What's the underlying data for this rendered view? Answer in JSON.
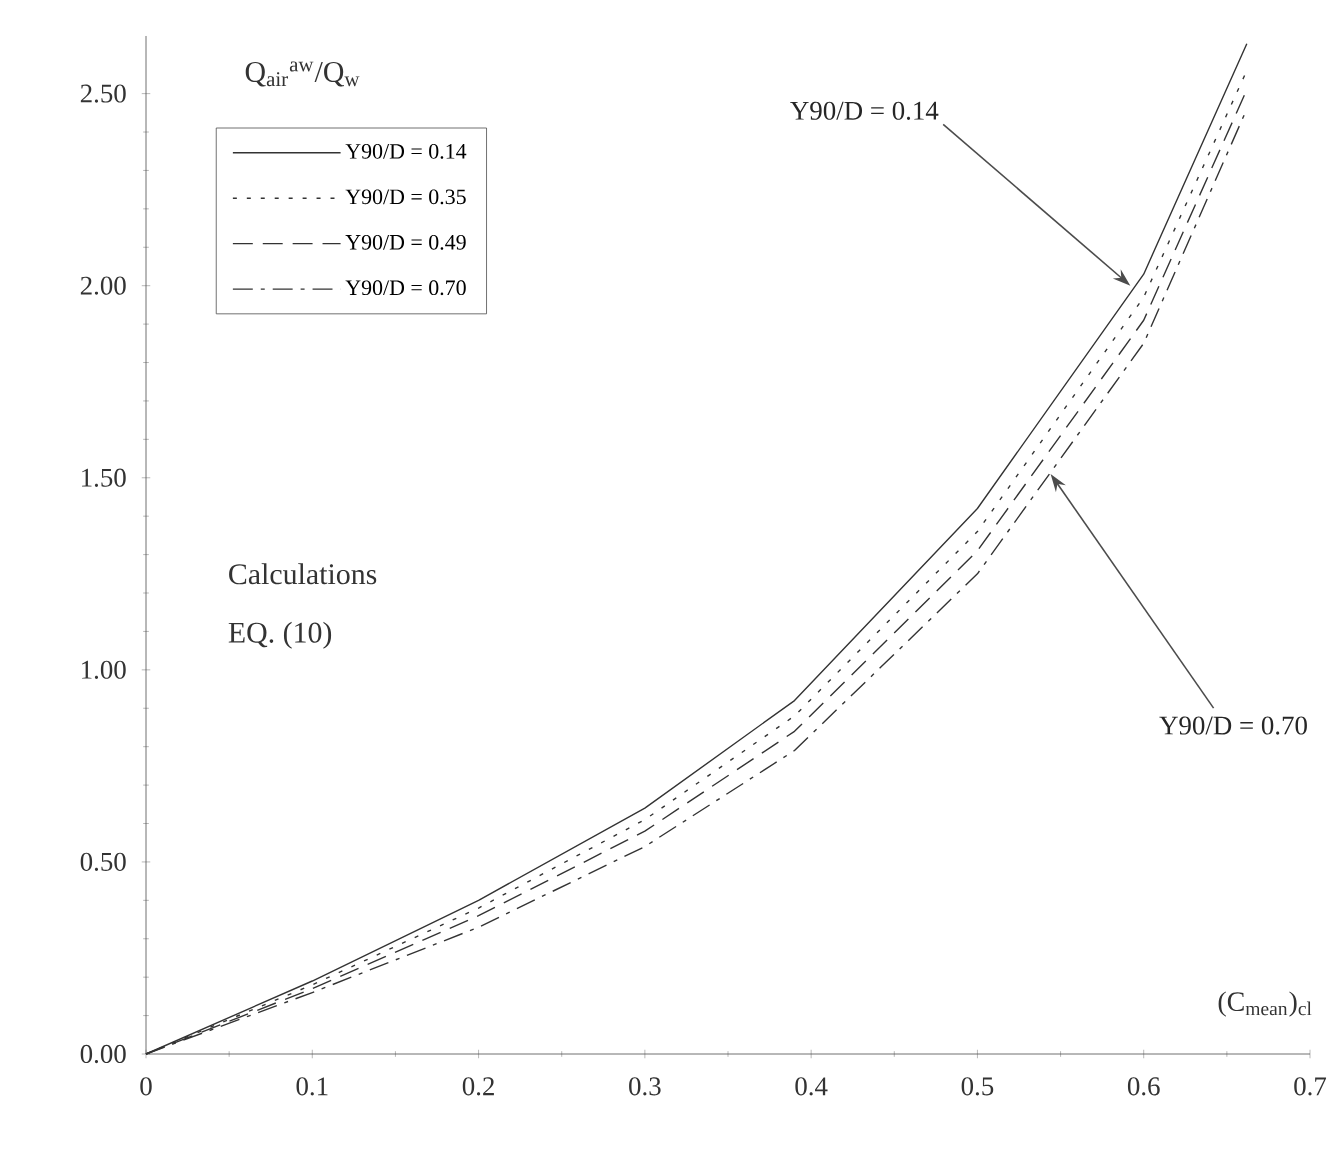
{
  "chart_data": {
    "type": "line",
    "xlabel": "(C$_{mean}$)$_{cl}$",
    "ylabel": "Q$_{air}$$^{aw}$/Q$_{w}$",
    "xlim": [
      0,
      0.7
    ],
    "ylim": [
      0,
      2.65
    ],
    "xticks": [
      0,
      0.1,
      0.2,
      0.3,
      0.4,
      0.5,
      0.6,
      0.7
    ],
    "yticks": [
      {
        "value": 0,
        "label": "0.00"
      },
      {
        "value": 0.5,
        "label": "0.50"
      },
      {
        "value": 1,
        "label": "1.00"
      },
      {
        "value": 1.5,
        "label": "1.50"
      },
      {
        "value": 2,
        "label": "2.00"
      },
      {
        "value": 2.5,
        "label": "2.50"
      }
    ],
    "x": [
      0,
      0.1,
      0.2,
      0.3,
      0.39,
      0.5,
      0.6,
      0.662
    ],
    "series": [
      {
        "name": "Y90/D = 0.14",
        "color": "#333333",
        "line_style": "solid",
        "values": [
          0,
          0.19,
          0.4,
          0.64,
          0.92,
          1.42,
          2.03,
          2.63
        ]
      },
      {
        "name": "Y90/D = 0.35",
        "color": "#333333",
        "line_style": "dotted",
        "values": [
          0,
          0.18,
          0.38,
          0.61,
          0.88,
          1.36,
          1.97,
          2.56
        ]
      },
      {
        "name": "Y90/D = 0.49",
        "color": "#333333",
        "line_style": "dashed",
        "values": [
          0,
          0.17,
          0.36,
          0.58,
          0.84,
          1.31,
          1.91,
          2.51
        ]
      },
      {
        "name": "Y90/D = 0.70",
        "color": "#333333",
        "line_style": "dashdot",
        "values": [
          0,
          0.16,
          0.33,
          0.54,
          0.79,
          1.25,
          1.85,
          2.46
        ]
      }
    ],
    "annotations": [
      {
        "text": "Y90/D = 0.14",
        "x": 0.592,
        "y": 2.0
      },
      {
        "text": "Y90/D = 0.70",
        "x": 0.544,
        "y": 1.51
      },
      "Calculations",
      "EQ. (10)"
    ],
    "legend": "top left",
    "grid": false,
    "marker": "none"
  }
}
